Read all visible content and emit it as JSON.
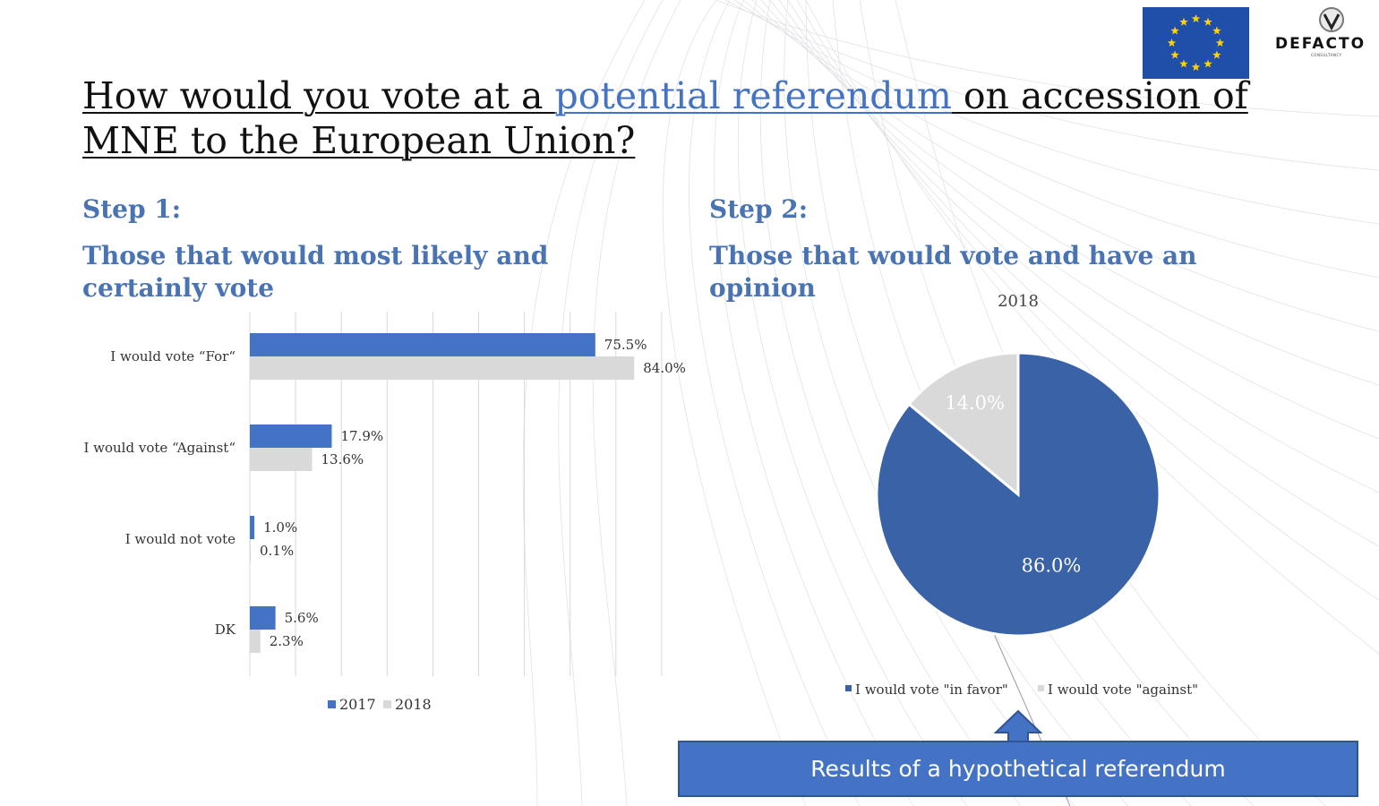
{
  "title": {
    "part1": "How would you vote at a ",
    "accent": "potential referendum",
    "part2": " on accession of MNE to the European Union?"
  },
  "logos": {
    "brand": "DEFACTO",
    "brand_sub": "CONSULTANCY"
  },
  "step1": {
    "heading": "Step 1:",
    "subheading": "Those that would most likely and certainly vote"
  },
  "step2": {
    "heading": "Step 2:",
    "subheading": "Those that would vote and have an opinion"
  },
  "callout": {
    "text": "Results of a hypothetical referendum"
  },
  "colors": {
    "series_2017": "#4472c4",
    "series_2018": "#d9d9d9",
    "pie_for": "#3a62a7",
    "pie_against": "#d9d9d9",
    "heading": "#4a73b4",
    "title_accent": "#4472c4"
  },
  "chart_data": [
    {
      "type": "bar",
      "orientation": "horizontal",
      "categories": [
        "I would vote “For“",
        "I would vote “Against“",
        "I would not vote",
        "DK"
      ],
      "series": [
        {
          "name": "2017",
          "values": [
            75.5,
            17.9,
            1.0,
            5.6
          ],
          "labels": [
            "75.5%",
            "17.9%",
            "1.0%",
            "5.6%"
          ]
        },
        {
          "name": "2018",
          "values": [
            84.0,
            13.6,
            0.1,
            2.3
          ],
          "labels": [
            "84.0%",
            "13.6%",
            "0.1%",
            "2.3%"
          ]
        }
      ],
      "xlim": [
        0,
        90
      ],
      "grid": true,
      "legend": "bottom"
    },
    {
      "type": "pie",
      "title": "2018",
      "slices": [
        {
          "name": "I would vote \"in favor\"",
          "value": 86.0,
          "label": "86.0%"
        },
        {
          "name": "I would vote \"against\"",
          "value": 14.0,
          "label": "14.0%"
        }
      ],
      "legend": "bottom"
    }
  ]
}
